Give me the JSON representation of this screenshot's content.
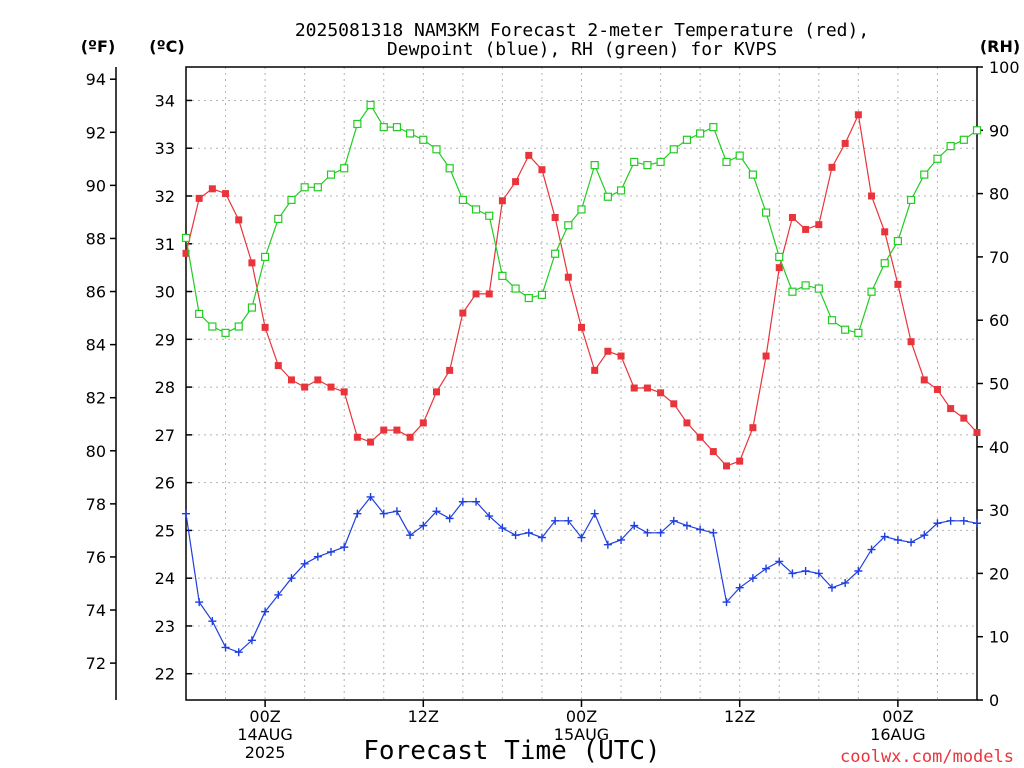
{
  "title_line1": "2025081318 NAM3KM Forecast 2-meter Temperature (red),",
  "title_line2": "Dewpoint (blue), RH (green) for KVPS",
  "unit_f": "(ºF)",
  "unit_c": "(ºC)",
  "unit_rh": "(RH)",
  "xlabel": "Forecast Time (UTC)",
  "credit": "coolwx.com/models",
  "colors": {
    "temperature": "#e8343a",
    "dewpoint": "#1f3fe0",
    "rh": "#22cc22",
    "grid": "#b4b4b4",
    "frame": "#000000"
  },
  "chart_data": {
    "type": "line",
    "x_unit": "hours since 2025-08-13 18Z",
    "x_range": [
      0,
      60
    ],
    "x_ticks": [
      {
        "hour": 6,
        "labels": [
          "00Z",
          "14AUG",
          "2025"
        ]
      },
      {
        "hour": 18,
        "labels": [
          "12Z"
        ]
      },
      {
        "hour": 30,
        "labels": [
          "00Z",
          "15AUG"
        ]
      },
      {
        "hour": 42,
        "labels": [
          "12Z"
        ]
      },
      {
        "hour": 54,
        "labels": [
          "00Z",
          "16AUG"
        ]
      }
    ],
    "celsius_ticks": [
      "22",
      "23",
      "24",
      "25",
      "26",
      "27",
      "28",
      "29",
      "30",
      "31",
      "32",
      "33",
      "34"
    ],
    "fahrenheit_ticks": [
      "72",
      "74",
      "76",
      "78",
      "80",
      "82",
      "84",
      "86",
      "88",
      "90",
      "92",
      "94"
    ],
    "rh_ticks": [
      "0",
      "10",
      "20",
      "30",
      "40",
      "50",
      "60",
      "70",
      "80",
      "90",
      "100"
    ],
    "c_range": [
      21.45,
      34.7
    ],
    "rh_range": [
      0,
      100
    ],
    "grid": true,
    "series": [
      {
        "name": "Temperature",
        "axis": "celsius",
        "marker": "filled-square",
        "x": [
          0,
          1,
          2,
          3,
          4,
          5,
          6,
          7,
          8,
          9,
          10,
          11,
          12,
          13,
          14,
          15,
          16,
          17,
          18,
          19,
          20,
          21,
          22,
          23,
          24,
          25,
          26,
          27,
          28,
          29,
          30,
          31,
          32,
          33,
          34,
          35,
          36,
          37,
          38,
          39,
          40,
          41,
          42,
          43,
          44,
          45,
          46,
          47,
          48,
          49,
          50,
          51,
          52,
          53,
          54,
          55,
          56,
          57,
          58,
          59,
          60
        ],
        "values": [
          30.8,
          31.95,
          32.15,
          32.05,
          31.5,
          30.6,
          29.25,
          28.45,
          28.15,
          28.0,
          28.15,
          28.0,
          27.9,
          26.95,
          26.85,
          27.1,
          27.1,
          26.95,
          27.25,
          27.9,
          28.35,
          29.55,
          29.95,
          29.95,
          31.9,
          32.3,
          32.85,
          32.55,
          31.55,
          30.3,
          29.25,
          28.35,
          28.75,
          28.65,
          27.98,
          27.98,
          27.88,
          27.65,
          27.25,
          26.95,
          26.65,
          26.35,
          26.45,
          27.15,
          28.65,
          30.5,
          31.55,
          31.3,
          31.4,
          32.6,
          33.1,
          33.7,
          32.0,
          31.25,
          30.15,
          28.95,
          28.15,
          27.95,
          27.55,
          27.35,
          27.05
        ]
      },
      {
        "name": "Dewpoint",
        "axis": "celsius",
        "marker": "plus",
        "x": [
          0,
          1,
          2,
          3,
          4,
          5,
          6,
          7,
          8,
          9,
          10,
          11,
          12,
          13,
          14,
          15,
          16,
          17,
          18,
          19,
          20,
          21,
          22,
          23,
          24,
          25,
          26,
          27,
          28,
          29,
          30,
          31,
          32,
          33,
          34,
          35,
          36,
          37,
          38,
          39,
          40,
          41,
          42,
          43,
          44,
          45,
          46,
          47,
          48,
          49,
          50,
          51,
          52,
          53,
          54,
          55,
          56,
          57,
          58,
          59,
          60
        ],
        "values": [
          25.35,
          23.5,
          23.1,
          22.55,
          22.45,
          22.7,
          23.3,
          23.65,
          24.0,
          24.3,
          24.45,
          24.55,
          24.65,
          25.35,
          25.7,
          25.35,
          25.4,
          24.9,
          25.1,
          25.4,
          25.25,
          25.6,
          25.6,
          25.3,
          25.05,
          24.9,
          24.95,
          24.85,
          25.2,
          25.2,
          24.85,
          25.35,
          24.7,
          24.8,
          25.1,
          24.95,
          24.95,
          25.2,
          25.1,
          25.02,
          24.95,
          23.5,
          23.8,
          24.0,
          24.2,
          24.35,
          24.1,
          24.15,
          24.1,
          23.8,
          23.9,
          24.15,
          24.6,
          24.87,
          24.8,
          24.75,
          24.9,
          25.15,
          25.2,
          25.2,
          25.15
        ]
      },
      {
        "name": "RH",
        "axis": "rh",
        "marker": "open-square",
        "x": [
          0,
          1,
          2,
          3,
          4,
          5,
          6,
          7,
          8,
          9,
          10,
          11,
          12,
          13,
          14,
          15,
          16,
          17,
          18,
          19,
          20,
          21,
          22,
          23,
          24,
          25,
          26,
          27,
          28,
          29,
          30,
          31,
          32,
          33,
          34,
          35,
          36,
          37,
          38,
          39,
          40,
          41,
          42,
          43,
          44,
          45,
          46,
          47,
          48,
          49,
          50,
          51,
          52,
          53,
          54,
          55,
          56,
          57,
          58,
          59,
          60
        ],
        "values": [
          73,
          61,
          59,
          58,
          59,
          62,
          70,
          76,
          79,
          81,
          81,
          83,
          84,
          91,
          94,
          90.5,
          90.5,
          89.5,
          88.5,
          87,
          84,
          79,
          77.5,
          76.5,
          67,
          65,
          63.5,
          64,
          70.5,
          75,
          77.5,
          84.5,
          79.5,
          80.5,
          85,
          84.5,
          85,
          87,
          88.5,
          89.5,
          90.5,
          85,
          86,
          83,
          77,
          70,
          64.5,
          65.5,
          65,
          60,
          58.5,
          58,
          64.5,
          69,
          72.5,
          79,
          83,
          85.5,
          87.5,
          88.5,
          90
        ]
      }
    ]
  }
}
